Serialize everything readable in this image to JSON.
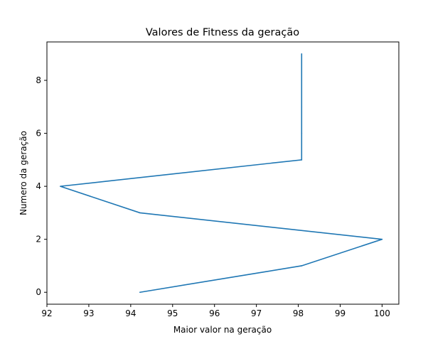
{
  "colors": {
    "line": "#1f77b4",
    "axes": "#000000",
    "background": "#ffffff"
  },
  "chart_data": {
    "type": "line",
    "title": "Valores de Fitness da geração",
    "xlabel": "Maior valor na geração",
    "ylabel": "Numero da geração",
    "grid": false,
    "xlim": [
      92.0,
      100.4
    ],
    "ylim": [
      -0.45,
      9.45
    ],
    "xticks": [
      92,
      93,
      94,
      95,
      96,
      97,
      98,
      99,
      100
    ],
    "yticks": [
      0,
      2,
      4,
      6,
      8
    ],
    "series": [
      {
        "x": [
          94.22,
          98.08,
          100.0,
          94.22,
          92.32,
          98.08,
          98.08,
          98.08,
          98.08,
          98.08
        ],
        "y": [
          0,
          1,
          2,
          3,
          4,
          5,
          6,
          7,
          8,
          9
        ]
      }
    ]
  }
}
